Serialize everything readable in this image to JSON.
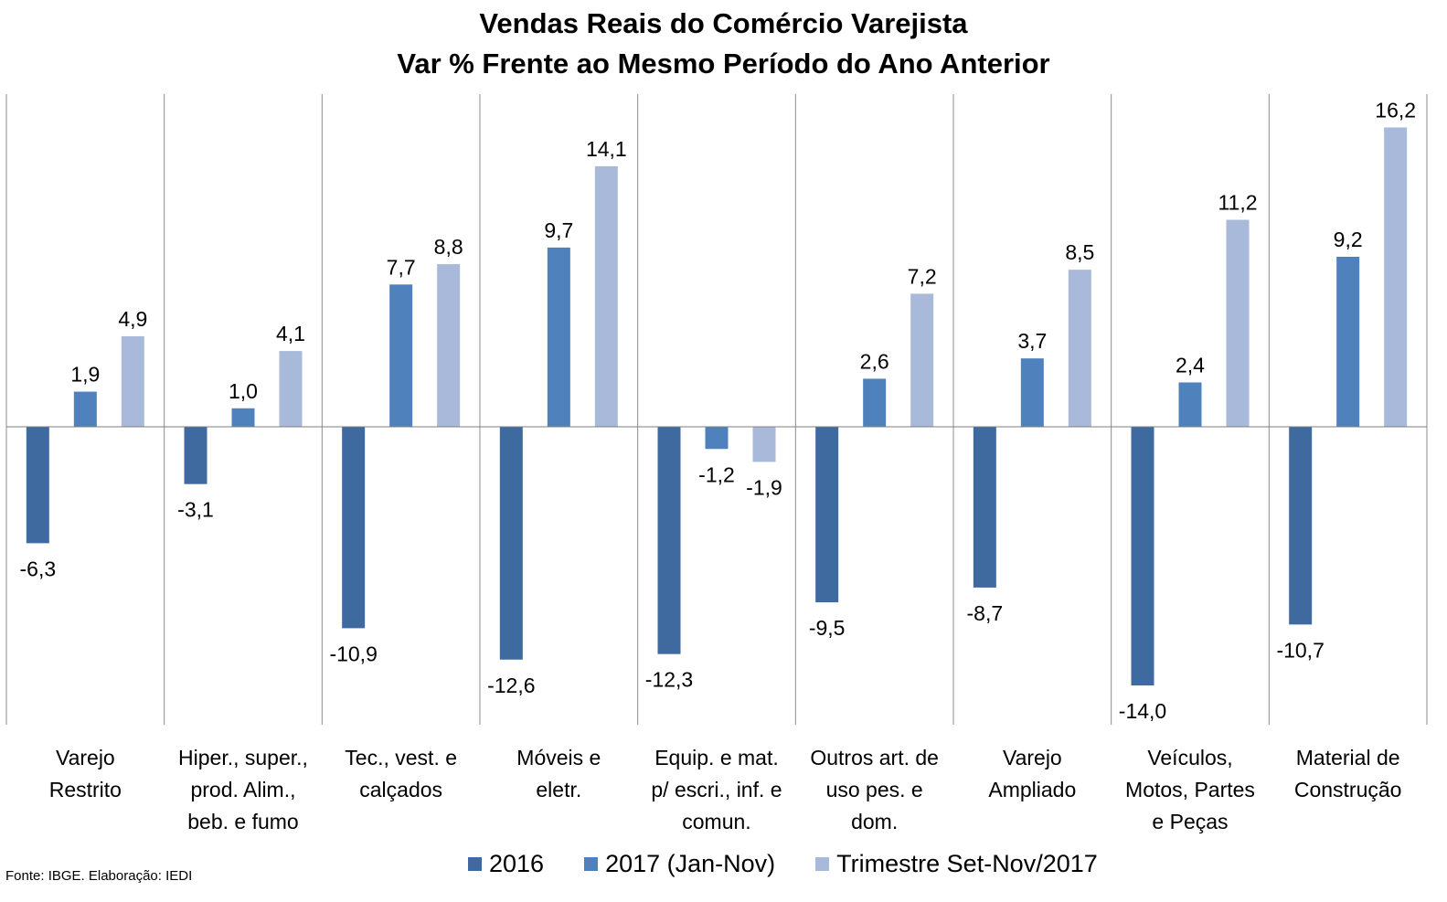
{
  "chart_data": {
    "type": "bar",
    "title": "Vendas Reais do Comércio Varejista",
    "subtitle": "Var % Frente ao Mesmo Período do Ano Anterior",
    "categories": [
      [
        "Varejo",
        "Restrito"
      ],
      [
        "Hiper., super.,",
        "prod. Alim.,",
        "beb. e fumo"
      ],
      [
        "Tec., vest. e",
        "calçados"
      ],
      [
        "Móveis e",
        "eletr."
      ],
      [
        "Equip. e mat.",
        "p/ escri., inf. e",
        "comun."
      ],
      [
        "Outros art. de",
        "uso pes. e",
        "dom."
      ],
      [
        "Varejo",
        "Ampliado"
      ],
      [
        "Veículos,",
        "Motos, Partes",
        "e Peças"
      ],
      [
        "Material de",
        "Construção"
      ]
    ],
    "series": [
      {
        "name": "2016",
        "color": "#3e6aa0",
        "values": [
          -6.3,
          -3.1,
          -10.9,
          -12.6,
          -12.3,
          -9.5,
          -8.7,
          -14.0,
          -10.7
        ],
        "labels": [
          "-6,3",
          "-3,1",
          "-10,9",
          "-12,6",
          "-12,3",
          "-9,5",
          "-8,7",
          "-14,0",
          "-10,7"
        ]
      },
      {
        "name": "2017 (Jan-Nov)",
        "color": "#4f81bd",
        "values": [
          1.9,
          1.0,
          7.7,
          9.7,
          -1.2,
          2.6,
          3.7,
          2.4,
          9.2
        ],
        "labels": [
          "1,9",
          "1,0",
          "7,7",
          "9,7",
          "-1,2",
          "2,6",
          "3,7",
          "2,4",
          "9,2"
        ]
      },
      {
        "name": "Trimestre Set-Nov/2017",
        "color": "#a9b9d9",
        "values": [
          4.9,
          4.1,
          8.8,
          14.1,
          -1.9,
          7.2,
          8.5,
          11.2,
          16.2
        ],
        "labels": [
          "4,9",
          "4,1",
          "8,8",
          "14,1",
          "-1,9",
          "7,2",
          "8,5",
          "11,2",
          "16,2"
        ]
      }
    ],
    "ylim": [
      -16,
      18
    ],
    "grid": false,
    "legend_position": "bottom"
  },
  "footer": {
    "source": "Fonte: IBGE. Elaboração: IEDI"
  }
}
